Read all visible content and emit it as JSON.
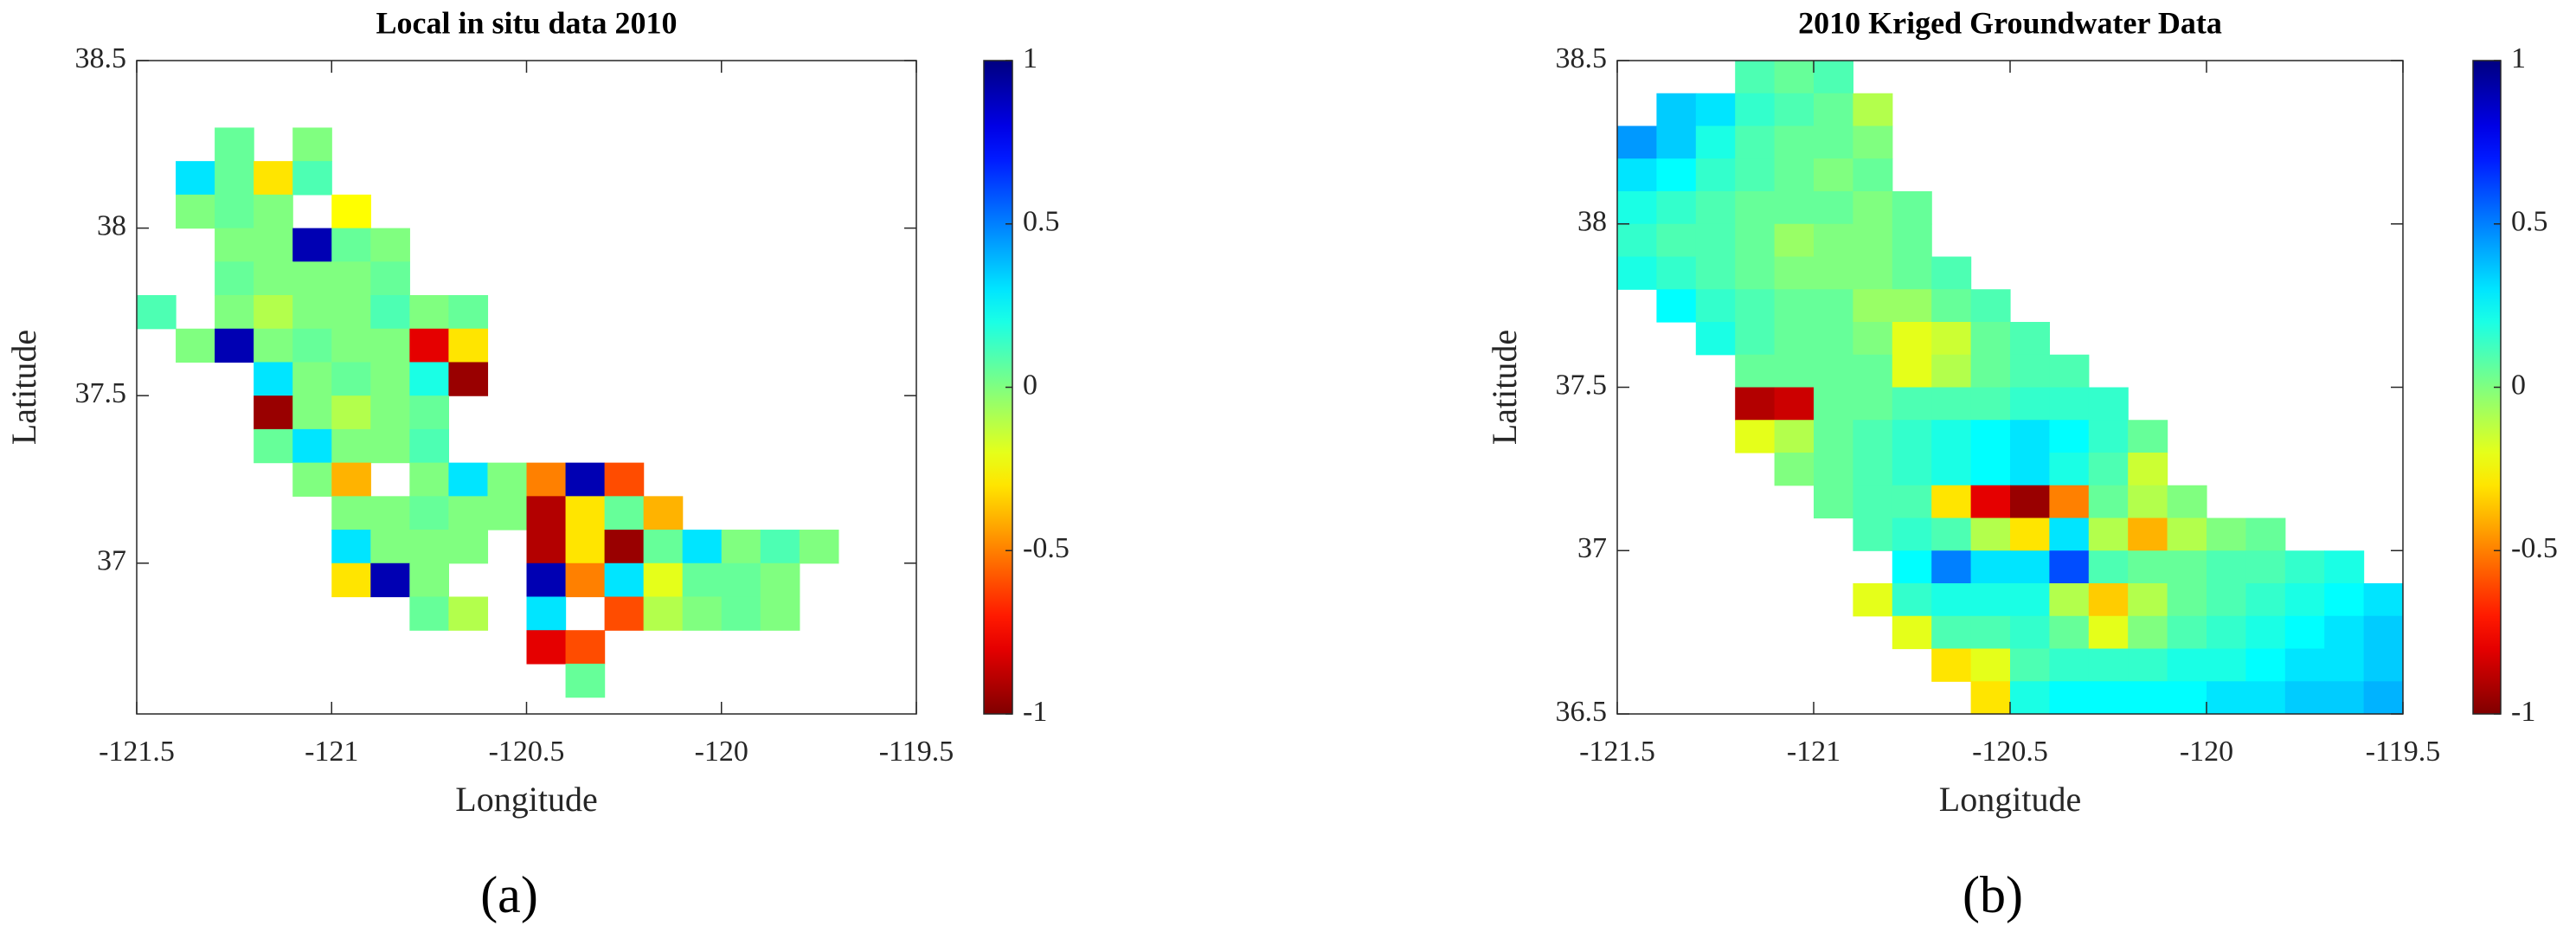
{
  "chart_data": [
    {
      "type": "heatmap",
      "title": "Local in situ data 2010",
      "x_label": "Longitude",
      "y_label": "Latitude",
      "panel_label": "(a)",
      "colormap": "jet_r",
      "clim": [
        -1,
        1
      ],
      "colorbar_ticks": [
        -1,
        -0.5,
        0,
        0.5,
        1
      ],
      "xlim": [
        -121.5,
        -119.5
      ],
      "xticks": [
        -121.5,
        -121,
        -120.5,
        -120,
        -119.5
      ],
      "ylim": [
        36.55,
        38.5
      ],
      "yticks": [
        37,
        37.5,
        38,
        38.5
      ],
      "x": [
        -121.45,
        -121.35,
        -121.25,
        -121.15,
        -121.05,
        -120.95,
        -120.85,
        -120.75,
        -120.65,
        -120.55,
        -120.45,
        -120.35,
        -120.25,
        -120.15,
        -120.05,
        -119.95,
        -119.85,
        -119.75,
        -119.65,
        -119.55
      ],
      "y": [
        38.45,
        38.35,
        38.25,
        38.15,
        38.05,
        37.95,
        37.85,
        37.75,
        37.65,
        37.55,
        37.45,
        37.35,
        37.25,
        37.15,
        37.05,
        36.95,
        36.85,
        36.75,
        36.65,
        36.55
      ],
      "z": [
        [
          null,
          null,
          null,
          null,
          null,
          null,
          null,
          null,
          null,
          null,
          null,
          null,
          null,
          null,
          null,
          null,
          null,
          null,
          null,
          null
        ],
        [
          null,
          null,
          null,
          null,
          null,
          null,
          null,
          null,
          null,
          null,
          null,
          null,
          null,
          null,
          null,
          null,
          null,
          null,
          null,
          null
        ],
        [
          null,
          null,
          0.05,
          null,
          0.0,
          null,
          null,
          null,
          null,
          null,
          null,
          null,
          null,
          null,
          null,
          null,
          null,
          null,
          null,
          null
        ],
        [
          null,
          0.3,
          0.05,
          -0.3,
          0.1,
          null,
          null,
          null,
          null,
          null,
          null,
          null,
          null,
          null,
          null,
          null,
          null,
          null,
          null,
          null
        ],
        [
          null,
          0.0,
          0.05,
          0.0,
          null,
          -0.25,
          null,
          null,
          null,
          null,
          null,
          null,
          null,
          null,
          null,
          null,
          null,
          null,
          null,
          null
        ],
        [
          null,
          null,
          0.0,
          0.0,
          0.9,
          0.05,
          0.0,
          null,
          null,
          null,
          null,
          null,
          null,
          null,
          null,
          null,
          null,
          null,
          null,
          null
        ],
        [
          null,
          null,
          0.05,
          0.0,
          0.0,
          0.0,
          0.05,
          null,
          null,
          null,
          null,
          null,
          null,
          null,
          null,
          null,
          null,
          null,
          null,
          null
        ],
        [
          0.1,
          null,
          0.0,
          -0.1,
          0.0,
          0.0,
          0.1,
          0.0,
          0.05,
          null,
          null,
          null,
          null,
          null,
          null,
          null,
          null,
          null,
          null,
          null
        ],
        [
          null,
          0.0,
          0.9,
          0.0,
          0.05,
          0.0,
          0.0,
          -0.8,
          -0.3,
          null,
          null,
          null,
          null,
          null,
          null,
          null,
          null,
          null,
          null,
          null
        ],
        [
          null,
          null,
          null,
          0.3,
          0.0,
          0.05,
          0.0,
          0.2,
          -0.95,
          null,
          null,
          null,
          null,
          null,
          null,
          null,
          null,
          null,
          null,
          null
        ],
        [
          null,
          null,
          null,
          -0.95,
          0.0,
          -0.1,
          0.0,
          0.05,
          null,
          null,
          null,
          null,
          null,
          null,
          null,
          null,
          null,
          null,
          null,
          null
        ],
        [
          null,
          null,
          null,
          0.05,
          0.3,
          0.0,
          0.0,
          0.1,
          null,
          null,
          null,
          null,
          null,
          null,
          null,
          null,
          null,
          null,
          null,
          null
        ],
        [
          null,
          null,
          null,
          null,
          0.0,
          -0.4,
          null,
          0.0,
          0.3,
          0.0,
          -0.5,
          0.9,
          -0.6,
          null,
          null,
          null,
          null,
          null,
          null,
          null
        ],
        [
          null,
          null,
          null,
          null,
          null,
          0.0,
          0.0,
          0.05,
          0.0,
          0.0,
          -0.9,
          -0.3,
          0.05,
          -0.4,
          null,
          null,
          null,
          null,
          null,
          null
        ],
        [
          null,
          null,
          null,
          null,
          null,
          0.3,
          0.0,
          0.0,
          0.0,
          null,
          -0.9,
          -0.3,
          -0.95,
          0.05,
          0.3,
          0.0,
          0.1,
          0.0,
          null,
          null
        ],
        [
          null,
          null,
          null,
          null,
          null,
          -0.3,
          0.9,
          0.0,
          null,
          null,
          0.9,
          -0.5,
          0.3,
          -0.2,
          0.05,
          0.05,
          0.0,
          null,
          null,
          null
        ],
        [
          null,
          null,
          null,
          null,
          null,
          null,
          null,
          0.05,
          -0.1,
          null,
          0.3,
          null,
          -0.6,
          -0.1,
          0.0,
          0.05,
          0.0,
          null,
          null,
          null
        ],
        [
          null,
          null,
          null,
          null,
          null,
          null,
          null,
          null,
          null,
          null,
          -0.8,
          -0.6,
          null,
          null,
          null,
          null,
          null,
          null,
          null,
          null
        ],
        [
          null,
          null,
          null,
          null,
          null,
          null,
          null,
          null,
          null,
          null,
          null,
          0.05,
          null,
          null,
          null,
          null,
          null,
          null,
          null,
          null
        ],
        [
          null,
          null,
          null,
          null,
          null,
          null,
          null,
          null,
          null,
          null,
          null,
          null,
          null,
          null,
          null,
          null,
          null,
          null,
          null,
          null
        ]
      ]
    },
    {
      "type": "heatmap",
      "title": "2010 Kriged Groundwater Data",
      "x_label": "Longitude",
      "y_label": "Latitude",
      "panel_label": "(b)",
      "colormap": "jet_r",
      "clim": [
        -1,
        1
      ],
      "colorbar_ticks": [
        -1,
        -0.5,
        0,
        0.5,
        1
      ],
      "xlim": [
        -121.5,
        -119.5
      ],
      "xticks": [
        -121.5,
        -121,
        -120.5,
        -120,
        -119.5
      ],
      "ylim": [
        36.5,
        38.5
      ],
      "yticks": [
        36.5,
        37,
        37.5,
        38,
        38.5
      ],
      "x": [
        -121.45,
        -121.35,
        -121.25,
        -121.15,
        -121.05,
        -120.95,
        -120.85,
        -120.75,
        -120.65,
        -120.55,
        -120.45,
        -120.35,
        -120.25,
        -120.15,
        -120.05,
        -119.95,
        -119.85,
        -119.75,
        -119.65,
        -119.55
      ],
      "y": [
        38.45,
        38.35,
        38.25,
        38.15,
        38.05,
        37.95,
        37.85,
        37.75,
        37.65,
        37.55,
        37.45,
        37.35,
        37.25,
        37.15,
        37.05,
        36.95,
        36.85,
        36.75,
        36.65,
        36.55
      ],
      "z": [
        [
          null,
          null,
          null,
          0.1,
          0.05,
          0.1,
          null,
          null,
          null,
          null,
          null,
          null,
          null,
          null,
          null,
          null,
          null,
          null,
          null,
          null
        ],
        [
          null,
          0.35,
          0.3,
          0.15,
          0.1,
          0.05,
          -0.1,
          null,
          null,
          null,
          null,
          null,
          null,
          null,
          null,
          null,
          null,
          null,
          null,
          null
        ],
        [
          0.45,
          0.35,
          0.2,
          0.1,
          0.05,
          0.05,
          0.0,
          null,
          null,
          null,
          null,
          null,
          null,
          null,
          null,
          null,
          null,
          null,
          null,
          null
        ],
        [
          0.3,
          0.25,
          0.15,
          0.1,
          0.05,
          0.0,
          0.05,
          null,
          null,
          null,
          null,
          null,
          null,
          null,
          null,
          null,
          null,
          null,
          null,
          null
        ],
        [
          0.2,
          0.15,
          0.1,
          0.05,
          0.05,
          0.05,
          0.0,
          0.05,
          null,
          null,
          null,
          null,
          null,
          null,
          null,
          null,
          null,
          null,
          null,
          null
        ],
        [
          0.15,
          0.1,
          0.1,
          0.05,
          -0.05,
          0.0,
          0.0,
          0.05,
          null,
          null,
          null,
          null,
          null,
          null,
          null,
          null,
          null,
          null,
          null,
          null
        ],
        [
          0.2,
          0.15,
          0.1,
          0.05,
          0.0,
          0.0,
          0.0,
          0.05,
          0.1,
          null,
          null,
          null,
          null,
          null,
          null,
          null,
          null,
          null,
          null,
          null
        ],
        [
          null,
          0.25,
          0.15,
          0.1,
          0.05,
          0.05,
          -0.05,
          -0.05,
          0.05,
          0.1,
          null,
          null,
          null,
          null,
          null,
          null,
          null,
          null,
          null,
          null
        ],
        [
          null,
          null,
          0.2,
          0.1,
          0.05,
          0.05,
          0.0,
          -0.2,
          -0.15,
          0.05,
          0.1,
          null,
          null,
          null,
          null,
          null,
          null,
          null,
          null,
          null
        ],
        [
          null,
          null,
          null,
          0.05,
          0.05,
          0.05,
          0.05,
          -0.2,
          -0.1,
          0.05,
          0.1,
          0.1,
          null,
          null,
          null,
          null,
          null,
          null,
          null,
          null
        ],
        [
          null,
          null,
          null,
          -0.9,
          -0.85,
          0.05,
          0.05,
          0.1,
          0.1,
          0.1,
          0.15,
          0.15,
          0.15,
          null,
          null,
          null,
          null,
          null,
          null,
          null
        ],
        [
          null,
          null,
          null,
          -0.2,
          -0.1,
          0.05,
          0.1,
          0.15,
          0.2,
          0.25,
          0.3,
          0.25,
          0.15,
          0.05,
          null,
          null,
          null,
          null,
          null,
          null
        ],
        [
          null,
          null,
          null,
          null,
          0.0,
          0.05,
          0.1,
          0.15,
          0.2,
          0.25,
          0.3,
          0.2,
          0.1,
          -0.15,
          null,
          null,
          null,
          null,
          null,
          null
        ],
        [
          null,
          null,
          null,
          null,
          null,
          0.05,
          0.1,
          0.1,
          -0.3,
          -0.8,
          -0.95,
          -0.5,
          0.05,
          -0.1,
          0.0,
          null,
          null,
          null,
          null,
          null
        ],
        [
          null,
          null,
          null,
          null,
          null,
          null,
          0.1,
          0.15,
          0.1,
          -0.1,
          -0.3,
          0.3,
          -0.1,
          -0.4,
          -0.1,
          0.0,
          0.05,
          null,
          null,
          null
        ],
        [
          null,
          null,
          null,
          null,
          null,
          null,
          null,
          0.25,
          0.5,
          0.3,
          0.3,
          0.6,
          0.1,
          0.05,
          0.05,
          0.1,
          0.1,
          0.15,
          0.2,
          null
        ],
        [
          null,
          null,
          null,
          null,
          null,
          null,
          -0.2,
          0.15,
          0.2,
          0.2,
          0.2,
          -0.1,
          -0.35,
          -0.1,
          0.05,
          0.1,
          0.15,
          0.2,
          0.25,
          0.3
        ],
        [
          null,
          null,
          null,
          null,
          null,
          null,
          null,
          -0.2,
          0.1,
          0.1,
          0.15,
          0.05,
          -0.2,
          0.0,
          0.1,
          0.15,
          0.2,
          0.25,
          0.3,
          0.35
        ],
        [
          null,
          null,
          null,
          null,
          null,
          null,
          null,
          null,
          -0.3,
          -0.2,
          0.1,
          0.15,
          0.15,
          0.15,
          0.2,
          0.2,
          0.25,
          0.3,
          0.3,
          0.35
        ],
        [
          null,
          null,
          null,
          null,
          null,
          null,
          null,
          null,
          null,
          -0.3,
          0.2,
          0.25,
          0.25,
          0.25,
          0.25,
          0.3,
          0.3,
          0.35,
          0.35,
          0.4
        ]
      ]
    }
  ]
}
